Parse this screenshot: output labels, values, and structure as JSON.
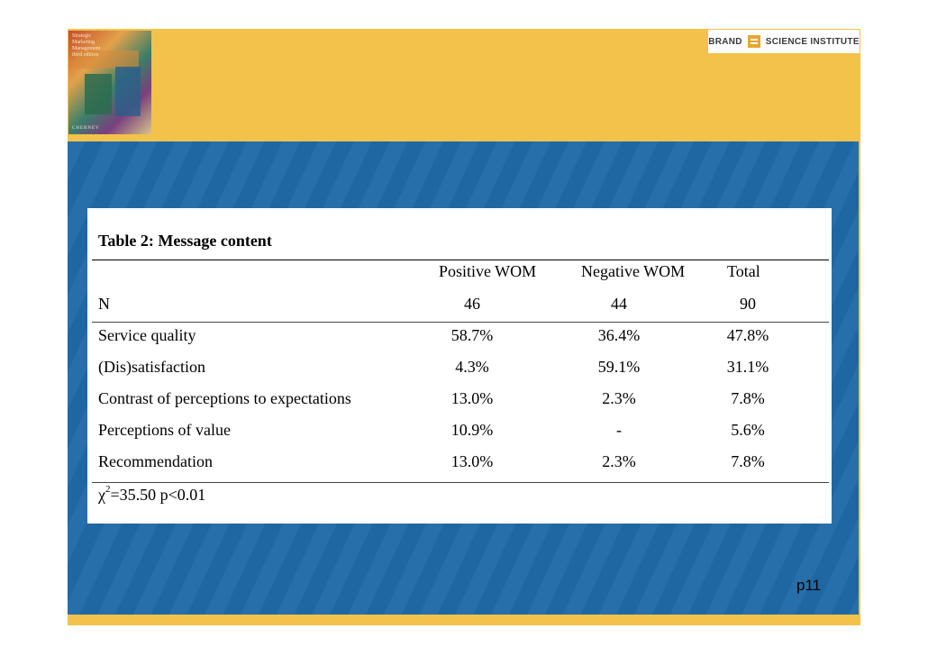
{
  "book_cover": {
    "title_lines": "Strategic\nMarketing\nManagement\nthird edition",
    "author": "CHERNEV"
  },
  "logo": {
    "left_word": "BRAND",
    "right_word": "SCIENCE INSTITUTE"
  },
  "table": {
    "title": "Table 2: Message content",
    "headers": [
      "Positive WOM",
      "Negative WOM",
      "Total"
    ],
    "n_row": {
      "label": "N",
      "values": [
        "46",
        "44",
        "90"
      ]
    },
    "rows": [
      {
        "label": "Service quality",
        "values": [
          "58.7%",
          "36.4%",
          "47.8%"
        ]
      },
      {
        "label": "(Dis)satisfaction",
        "values": [
          "4.3%",
          "59.1%",
          "31.1%"
        ]
      },
      {
        "label": "Contrast of perceptions to expectations",
        "values": [
          "13.0%",
          "2.3%",
          "7.8%"
        ]
      },
      {
        "label": "Perceptions of value",
        "values": [
          "10.9%",
          "-",
          "5.6%"
        ]
      },
      {
        "label": "Recommendation",
        "values": [
          "13.0%",
          "2.3%",
          "7.8%"
        ]
      }
    ],
    "chi_symbol": "χ",
    "chi_sup": "2",
    "chi_rest": "=35.50 p<0.01"
  },
  "page_number": "p11",
  "colors": {
    "gold": "#f2c24a",
    "blue": "#1f6aa8"
  }
}
